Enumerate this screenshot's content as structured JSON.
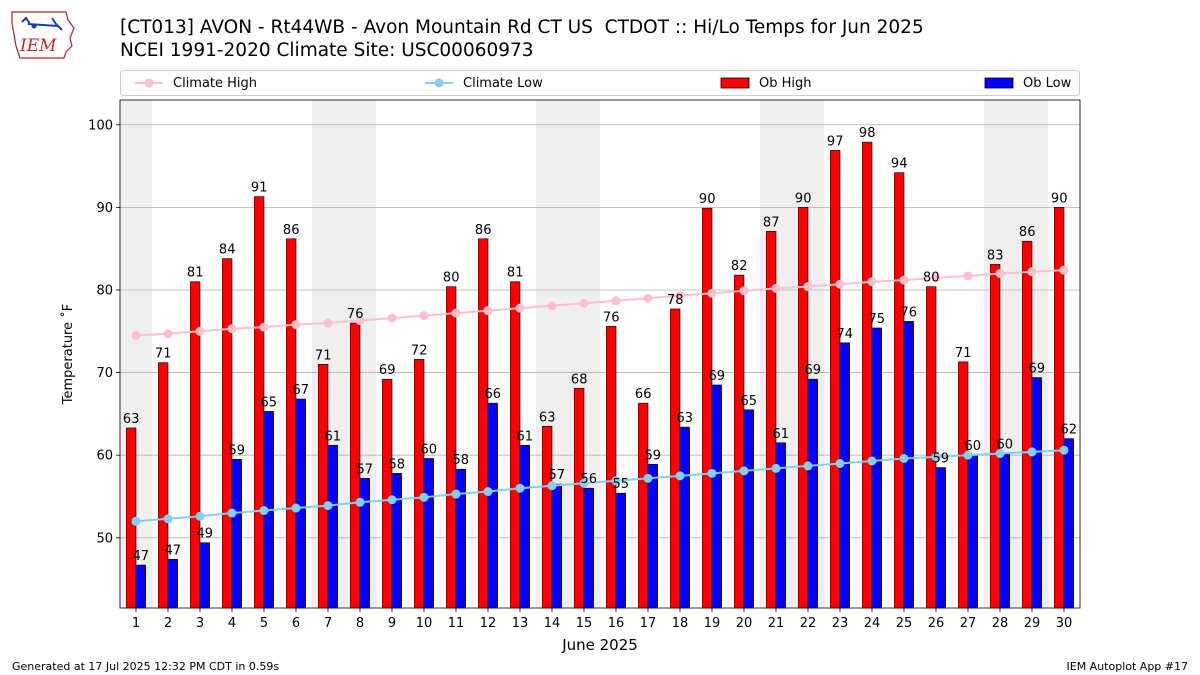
{
  "header": {
    "logo_text": "IEM",
    "title": "[CT013] AVON - Rt44WB - Avon Mountain Rd CT US  CTDOT :: Hi/Lo Temps for Jun 2025",
    "subtitle": "NCEI 1991-2020 Climate Site: USC00060973"
  },
  "legend": {
    "items": [
      {
        "label": "Climate High",
        "color": "#ffc0cb",
        "kind": "line"
      },
      {
        "label": "Climate Low",
        "color": "#87ceeb",
        "kind": "line"
      },
      {
        "label": "Ob High",
        "color": "#ff0000",
        "kind": "bar"
      },
      {
        "label": "Ob Low",
        "color": "#0000ff",
        "kind": "bar"
      }
    ]
  },
  "footer": {
    "generated": "Generated at 17 Jul 2025 12:32 PM CDT in 0.59s",
    "app": "IEM Autoplot App #17"
  },
  "chart_data": {
    "type": "bar",
    "xlabel": "June 2025",
    "ylabel": "Temperature $^\\circ$F",
    "ylim": [
      41.5,
      103
    ],
    "yticks": [
      50,
      60,
      70,
      80,
      90,
      100
    ],
    "grid": true,
    "legend_position": "top",
    "weekend_shading": [
      [
        1
      ],
      [
        7,
        8
      ],
      [
        14,
        15
      ],
      [
        21,
        22
      ],
      [
        28,
        29
      ]
    ],
    "categories": [
      1,
      2,
      3,
      4,
      5,
      6,
      7,
      8,
      9,
      10,
      11,
      12,
      13,
      14,
      15,
      16,
      17,
      18,
      19,
      20,
      21,
      22,
      23,
      24,
      25,
      26,
      27,
      28,
      29,
      30
    ],
    "series": [
      {
        "name": "Ob High",
        "type": "bar",
        "color": "#ff0000",
        "values": [
          63,
          71,
          81,
          84,
          91,
          86,
          71,
          76,
          69,
          72,
          80,
          86,
          81,
          63,
          68,
          76,
          66,
          78,
          90,
          82,
          87,
          90,
          97,
          98,
          94,
          80,
          71,
          83,
          86,
          90
        ],
        "exact": [
          63.3,
          71.2,
          81.0,
          83.8,
          91.3,
          86.2,
          71.0,
          76.0,
          69.2,
          71.6,
          80.4,
          86.2,
          81.0,
          63.5,
          68.1,
          75.6,
          66.3,
          77.7,
          89.9,
          81.8,
          87.1,
          90.0,
          96.9,
          97.9,
          94.2,
          80.4,
          71.3,
          83.1,
          85.9,
          90.0
        ]
      },
      {
        "name": "Ob Low",
        "type": "bar",
        "color": "#0000ff",
        "values": [
          47,
          47,
          49,
          59,
          65,
          67,
          61,
          57,
          58,
          60,
          58,
          66,
          61,
          57,
          56,
          55,
          59,
          63,
          69,
          65,
          61,
          69,
          74,
          75,
          76,
          59,
          60,
          60,
          69,
          62
        ],
        "exact": [
          46.7,
          47.4,
          49.4,
          59.5,
          65.3,
          66.8,
          61.2,
          57.2,
          57.8,
          59.6,
          58.3,
          66.3,
          61.2,
          56.5,
          56.0,
          55.4,
          58.9,
          63.4,
          68.5,
          65.5,
          61.5,
          69.2,
          73.6,
          75.4,
          76.2,
          58.5,
          60.0,
          60.2,
          69.4,
          62.0
        ]
      },
      {
        "name": "Climate High",
        "type": "line",
        "color": "#ffc0cb",
        "values": [
          74.5,
          74.7,
          75.0,
          75.3,
          75.5,
          75.8,
          76.0,
          76.3,
          76.6,
          76.9,
          77.2,
          77.5,
          77.8,
          78.1,
          78.4,
          78.7,
          79.0,
          79.3,
          79.6,
          79.9,
          80.2,
          80.4,
          80.7,
          81.0,
          81.2,
          81.5,
          81.7,
          82.0,
          82.2,
          82.4
        ]
      },
      {
        "name": "Climate Low",
        "type": "line",
        "color": "#87ceeb",
        "values": [
          52.0,
          52.3,
          52.6,
          53.0,
          53.3,
          53.6,
          53.9,
          54.3,
          54.6,
          54.9,
          55.3,
          55.6,
          56.0,
          56.3,
          56.6,
          56.9,
          57.2,
          57.5,
          57.8,
          58.1,
          58.4,
          58.7,
          59.0,
          59.3,
          59.6,
          59.8,
          60.0,
          60.2,
          60.4,
          60.6
        ]
      }
    ]
  }
}
